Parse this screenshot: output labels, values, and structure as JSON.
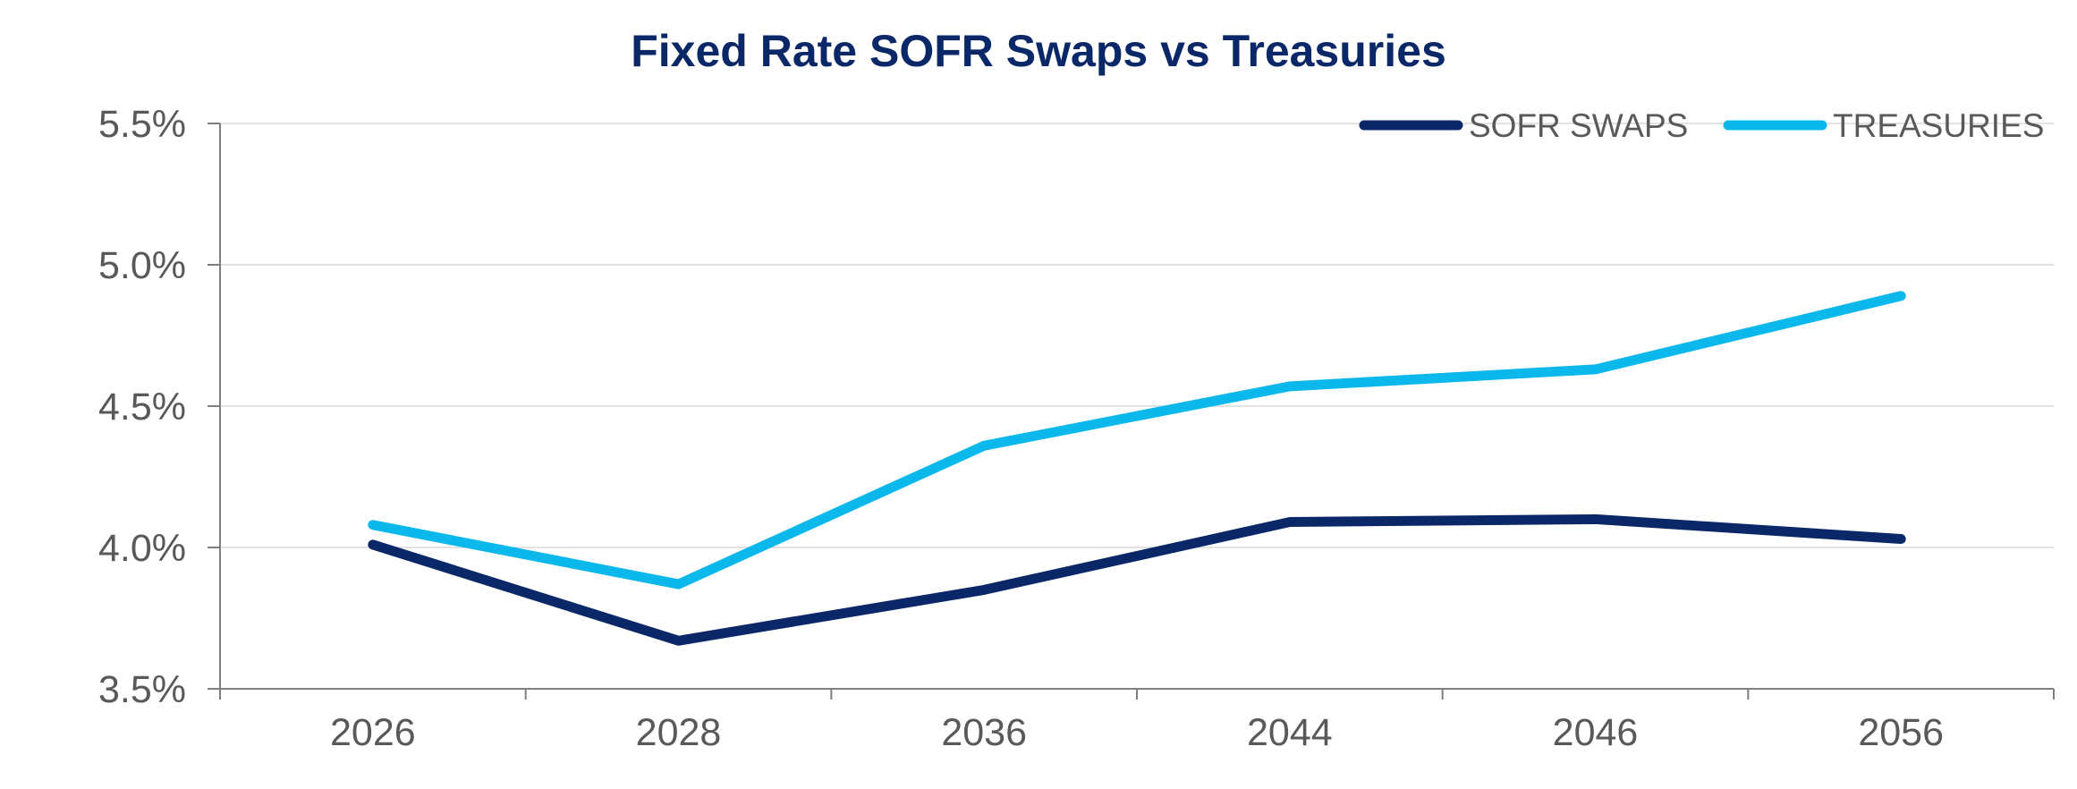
{
  "chart_data": {
    "type": "line",
    "title": "Fixed Rate SOFR Swaps vs Treasuries",
    "categories": [
      "2026",
      "2028",
      "2036",
      "2044",
      "2046",
      "2056"
    ],
    "series": [
      {
        "name": "SOFR SWAPS",
        "color": "#0a2868",
        "values": [
          4.01,
          3.67,
          3.85,
          4.09,
          4.1,
          4.03
        ]
      },
      {
        "name": "TREASURIES",
        "color": "#0bb8ec",
        "values": [
          4.08,
          3.87,
          4.36,
          4.57,
          4.63,
          4.89
        ]
      }
    ],
    "ylim": [
      3.5,
      5.5
    ],
    "yticks": [
      3.5,
      4.0,
      4.5,
      5.0,
      5.5
    ],
    "ytick_labels": [
      "3.5%",
      "4.0%",
      "4.5%",
      "5.0%",
      "5.5%"
    ],
    "xlabel": "",
    "ylabel": "",
    "grid": true,
    "legend_position": "top-right",
    "title_color": "#0a2868",
    "axis_color": "#7f7f7f",
    "grid_color": "#d9d9d9"
  }
}
